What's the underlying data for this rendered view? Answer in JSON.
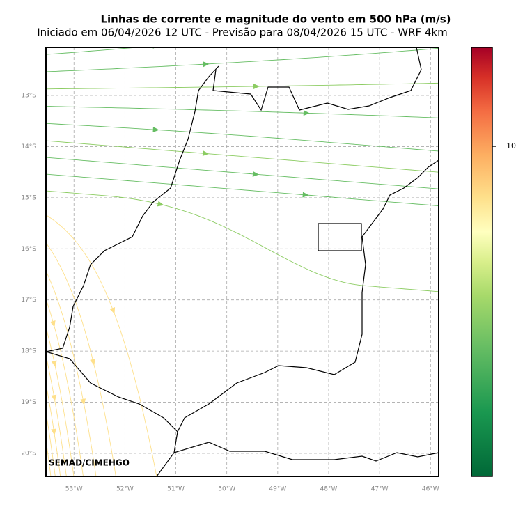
{
  "title": "Linhas de corrente e magnitude do vento em 500 hPa (m/s)",
  "subtitle": "Iniciado em 06/04/2026 12 UTC - Previsão para 08/04/2026 15 UTC - WRF 4km",
  "map": {
    "xlim": [
      -53.55,
      -45.84
    ],
    "ylim": [
      -20.45,
      -12.06
    ],
    "xticks": [
      {
        "value": -53,
        "label": "53°W"
      },
      {
        "value": -52,
        "label": "52°W"
      },
      {
        "value": -51,
        "label": "51°W"
      },
      {
        "value": -50,
        "label": "50°W"
      },
      {
        "value": -49,
        "label": "49°W"
      },
      {
        "value": -48,
        "label": "48°W"
      },
      {
        "value": -47,
        "label": "47°W"
      },
      {
        "value": -46,
        "label": "46°W"
      }
    ],
    "yticks": [
      {
        "value": -13,
        "label": "13°S"
      },
      {
        "value": -14,
        "label": "14°S"
      },
      {
        "value": -15,
        "label": "15°S"
      },
      {
        "value": -16,
        "label": "16°S"
      },
      {
        "value": -17,
        "label": "17°S"
      },
      {
        "value": -18,
        "label": "18°S"
      },
      {
        "value": -19,
        "label": "19°S"
      },
      {
        "value": -20,
        "label": "20°S"
      }
    ],
    "watermark": "SEMAD/CIMEHGO"
  },
  "colorbar": {
    "clim": [
      0,
      13
    ],
    "ticks": [
      10
    ]
  }
}
